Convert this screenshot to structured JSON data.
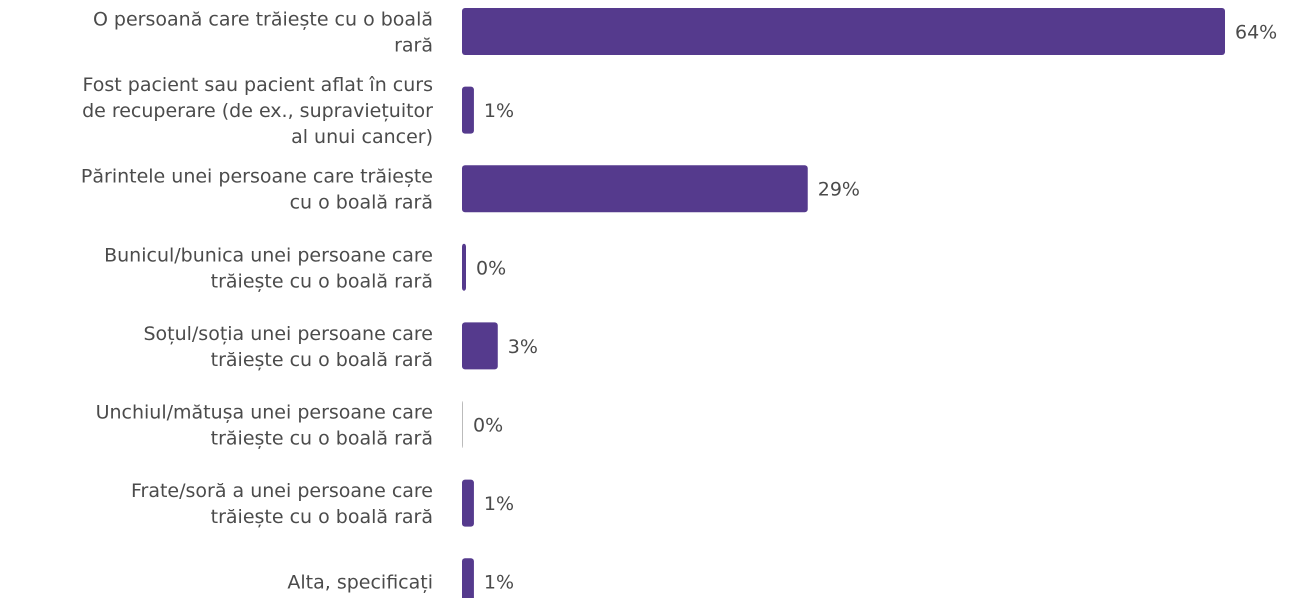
{
  "chart_data": {
    "type": "bar",
    "orientation": "horizontal",
    "color": "#553a8d",
    "categories": [
      [
        "O persoană care trăiește cu o boală",
        "rară"
      ],
      [
        "Fost pacient sau pacient aflat în curs",
        "de recuperare (de ex., supraviețuitor",
        "al unui cancer)"
      ],
      [
        "Părintele unei persoane care trăiește",
        "cu o boală rară"
      ],
      [
        "Bunicul/bunica unei persoane care",
        "trăiește cu o boală rară"
      ],
      [
        "Soțul/soția unei persoane care",
        "trăiește cu o boală rară"
      ],
      [
        "Unchiul/mătușa unei persoane care",
        "trăiește cu o boală rară"
      ],
      [
        "Frate/soră a unei persoane care",
        "trăiește cu o boală rară"
      ],
      [
        "Alta, specificați"
      ]
    ],
    "values": [
      64,
      1,
      29,
      0,
      3,
      0,
      1,
      1
    ],
    "value_labels": [
      "64%",
      "1%",
      "29%",
      "0%",
      "3%",
      "0%",
      "1%",
      "1%"
    ],
    "xlim": [
      0,
      64
    ]
  }
}
